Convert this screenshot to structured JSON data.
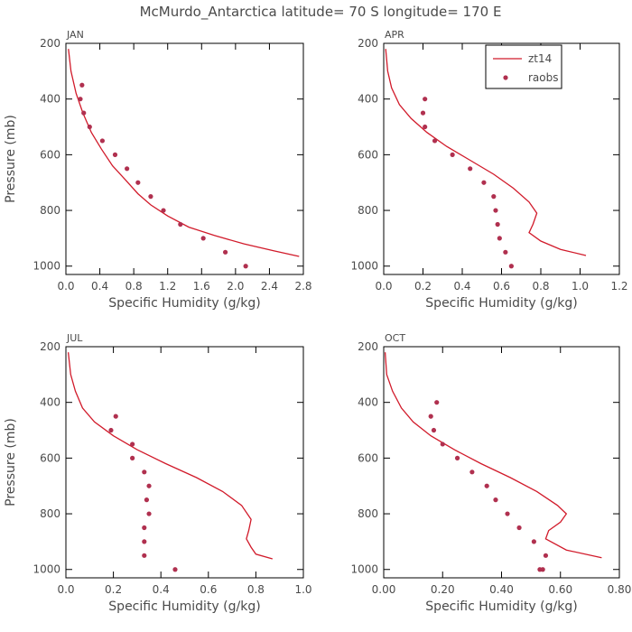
{
  "title": "McMurdo_Antarctica  latitude= 70 S longitude= 170 E",
  "legend": {
    "line_label": "zt14",
    "dot_label": "raobs"
  },
  "colors": {
    "series": "#d11a2a",
    "dots": "#b0304f",
    "frame": "#000000",
    "text": "#4a4a4a"
  },
  "chart_data": [
    {
      "type": "line",
      "panel": "JAN",
      "xlabel": "Specific Humidity (g/kg)",
      "ylabel": "Pressure (mb)",
      "xlim": [
        0,
        2.8
      ],
      "ylim": [
        200,
        1030
      ],
      "y_inverted": true,
      "xticks": [
        "0.0",
        "0.4",
        "0.8",
        "1.2",
        "1.6",
        "2.0",
        "2.4",
        "2.8"
      ],
      "xtick_values": [
        0,
        0.4,
        0.8,
        1.2,
        1.6,
        2.0,
        2.4,
        2.8
      ],
      "yticks": [
        "200",
        "400",
        "600",
        "800",
        "1000"
      ],
      "ytick_values": [
        200,
        400,
        600,
        800,
        1000
      ],
      "series": [
        {
          "name": "zt14",
          "style": "line",
          "x": [
            0.03,
            0.06,
            0.12,
            0.2,
            0.3,
            0.42,
            0.55,
            0.7,
            0.85,
            1.0,
            1.2,
            1.45,
            1.75,
            2.1,
            2.45,
            2.75
          ],
          "y": [
            220,
            300,
            380,
            450,
            520,
            580,
            640,
            690,
            740,
            780,
            820,
            860,
            890,
            920,
            945,
            965
          ]
        },
        {
          "name": "raobs",
          "style": "dots",
          "x": [
            0.19,
            0.17,
            0.21,
            0.28,
            0.43,
            0.58,
            0.72,
            0.85,
            1.0,
            1.15,
            1.35,
            1.62,
            1.88,
            2.12
          ],
          "y": [
            350,
            400,
            450,
            500,
            550,
            600,
            650,
            700,
            750,
            800,
            850,
            900,
            950,
            1000
          ]
        }
      ]
    },
    {
      "type": "line",
      "panel": "APR",
      "xlabel": "Specific Humidity (g/kg)",
      "ylabel": "",
      "xlim": [
        0,
        1.2
      ],
      "ylim": [
        200,
        1030
      ],
      "y_inverted": true,
      "xticks": [
        "0.0",
        "0.2",
        "0.4",
        "0.6",
        "0.8",
        "1.0",
        "1.2"
      ],
      "xtick_values": [
        0,
        0.2,
        0.4,
        0.6,
        0.8,
        1.0,
        1.2
      ],
      "yticks": [
        "200",
        "400",
        "600",
        "800",
        "1000"
      ],
      "ytick_values": [
        200,
        400,
        600,
        800,
        1000
      ],
      "legend": true,
      "series": [
        {
          "name": "zt14",
          "style": "line",
          "x": [
            0.01,
            0.02,
            0.04,
            0.08,
            0.14,
            0.22,
            0.32,
            0.44,
            0.56,
            0.66,
            0.74,
            0.78,
            0.76,
            0.74,
            0.8,
            0.9,
            1.03
          ],
          "y": [
            220,
            300,
            360,
            420,
            470,
            520,
            570,
            620,
            670,
            720,
            770,
            810,
            850,
            880,
            910,
            940,
            962
          ]
        },
        {
          "name": "raobs",
          "style": "dots",
          "x": [
            0.21,
            0.2,
            0.21,
            0.26,
            0.35,
            0.44,
            0.51,
            0.56,
            0.57,
            0.58,
            0.59,
            0.62,
            0.65
          ],
          "y": [
            400,
            450,
            500,
            550,
            600,
            650,
            700,
            750,
            800,
            850,
            900,
            950,
            1000
          ]
        }
      ]
    },
    {
      "type": "line",
      "panel": "JUL",
      "xlabel": "Specific Humidity (g/kg)",
      "ylabel": "Pressure (mb)",
      "xlim": [
        0,
        1.0
      ],
      "ylim": [
        200,
        1030
      ],
      "y_inverted": true,
      "xticks": [
        "0.0",
        "0.2",
        "0.4",
        "0.6",
        "0.8",
        "1.0"
      ],
      "xtick_values": [
        0,
        0.2,
        0.4,
        0.6,
        0.8,
        1.0
      ],
      "yticks": [
        "200",
        "400",
        "600",
        "800",
        "1000"
      ],
      "ytick_values": [
        200,
        400,
        600,
        800,
        1000
      ],
      "series": [
        {
          "name": "zt14",
          "style": "line",
          "x": [
            0.01,
            0.02,
            0.04,
            0.07,
            0.12,
            0.2,
            0.3,
            0.42,
            0.55,
            0.66,
            0.74,
            0.78,
            0.77,
            0.76,
            0.78,
            0.8,
            0.87
          ],
          "y": [
            220,
            300,
            360,
            420,
            470,
            520,
            570,
            620,
            670,
            720,
            770,
            820,
            860,
            890,
            920,
            945,
            962
          ]
        },
        {
          "name": "raobs",
          "style": "dots",
          "x": [
            0.21,
            0.19,
            0.28,
            0.28,
            0.33,
            0.35,
            0.34,
            0.35,
            0.33,
            0.33,
            0.33,
            0.46
          ],
          "y": [
            450,
            500,
            550,
            600,
            650,
            700,
            750,
            800,
            850,
            900,
            950,
            1000
          ]
        }
      ]
    },
    {
      "type": "line",
      "panel": "OCT",
      "xlabel": "Specific Humidity (g/kg)",
      "ylabel": "",
      "xlim": [
        0,
        0.8
      ],
      "ylim": [
        200,
        1030
      ],
      "y_inverted": true,
      "xticks": [
        "0.00",
        "0.20",
        "0.40",
        "0.60",
        "0.80"
      ],
      "xtick_values": [
        0,
        0.2,
        0.4,
        0.6,
        0.8
      ],
      "yticks": [
        "200",
        "400",
        "600",
        "800",
        "1000"
      ],
      "ytick_values": [
        200,
        400,
        600,
        800,
        1000
      ],
      "series": [
        {
          "name": "zt14",
          "style": "line",
          "x": [
            0.005,
            0.01,
            0.03,
            0.06,
            0.1,
            0.16,
            0.24,
            0.33,
            0.43,
            0.52,
            0.59,
            0.62,
            0.6,
            0.56,
            0.55,
            0.62,
            0.74
          ],
          "y": [
            220,
            300,
            360,
            420,
            470,
            520,
            570,
            620,
            670,
            720,
            770,
            800,
            830,
            860,
            890,
            930,
            958
          ]
        },
        {
          "name": "raobs",
          "style": "dots",
          "x": [
            0.18,
            0.16,
            0.17,
            0.2,
            0.25,
            0.3,
            0.35,
            0.38,
            0.42,
            0.46,
            0.51,
            0.55,
            0.54,
            0.53
          ],
          "y": [
            400,
            450,
            500,
            550,
            600,
            650,
            700,
            750,
            800,
            850,
            900,
            950,
            1000,
            1000
          ]
        }
      ]
    }
  ]
}
